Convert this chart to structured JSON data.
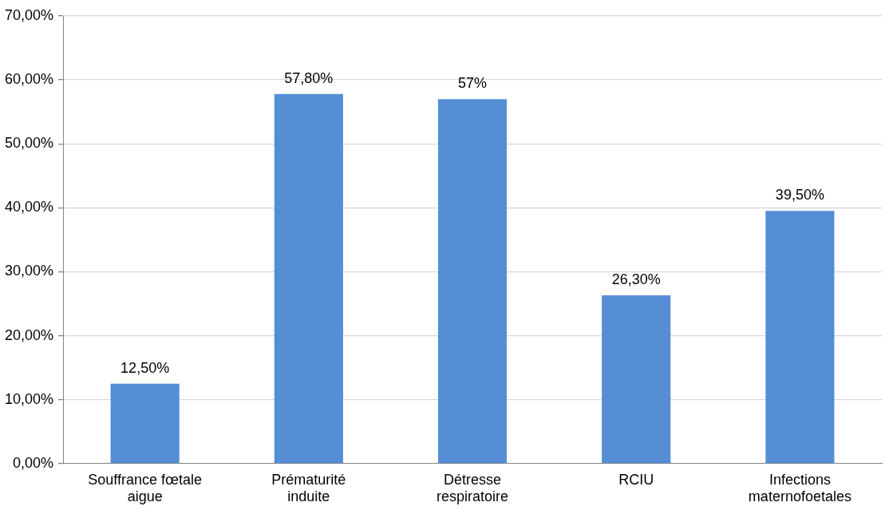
{
  "chart_data": {
    "type": "bar",
    "categories": [
      "Souffrance fœtale aigue",
      "Prématurité induite",
      "Détresse respiratoire",
      "RCIU",
      "Infections maternofoetales"
    ],
    "values": [
      12.5,
      57.8,
      57,
      26.3,
      39.5
    ],
    "value_labels": [
      "12,50%",
      "57,80%",
      "57%",
      "26,30%",
      "39,50%"
    ],
    "color": "#558ed5",
    "ylim": [
      0,
      70
    ],
    "yticks": [
      {
        "value": 0,
        "label": "0,00%"
      },
      {
        "value": 10,
        "label": "10,00%"
      },
      {
        "value": 20,
        "label": "20,00%"
      },
      {
        "value": 30,
        "label": "30,00%"
      },
      {
        "value": 40,
        "label": "40,00%"
      },
      {
        "value": 50,
        "label": "50,00%"
      },
      {
        "value": 60,
        "label": "60,00%"
      },
      {
        "value": 70,
        "label": "70,00%"
      }
    ],
    "grid": "y",
    "legend": false
  }
}
